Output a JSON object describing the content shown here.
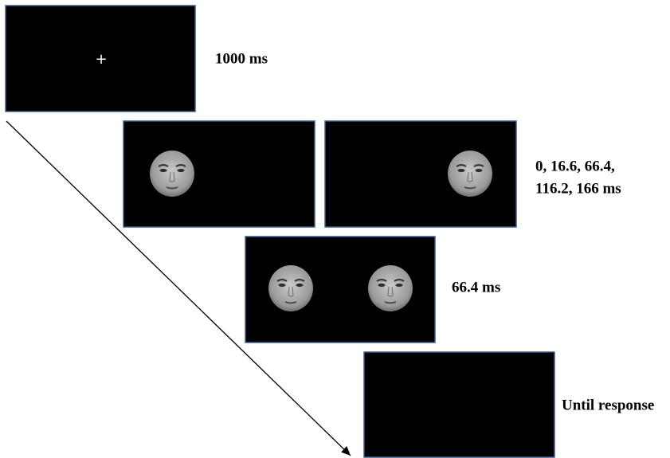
{
  "screens": [
    {
      "symbol": "+",
      "label": "1000 ms"
    },
    {
      "label_lines": [
        "0, 16.6, 66.4,",
        "116.2, 166 ms"
      ]
    },
    {
      "label": "66.4 ms"
    },
    {
      "label": "Until response"
    }
  ]
}
